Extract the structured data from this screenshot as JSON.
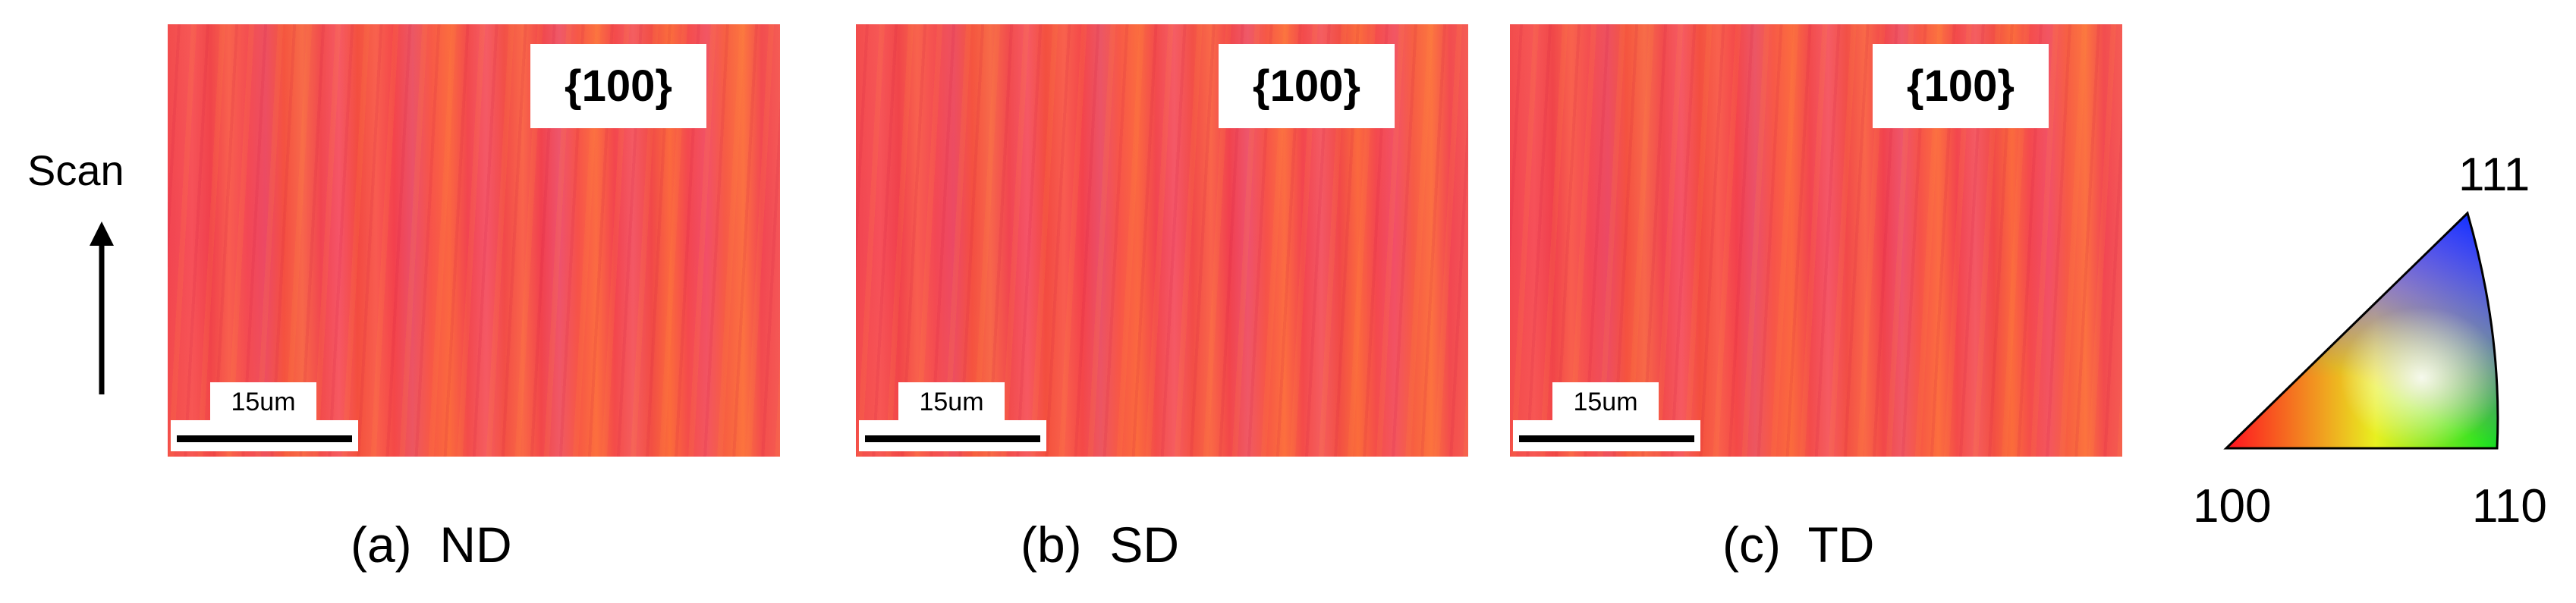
{
  "scan_label": "Scan",
  "panels": [
    {
      "badge": "{100}",
      "scale_bar": "15um",
      "caption": "(a)  ND"
    },
    {
      "badge": "{100}",
      "scale_bar": "15um",
      "caption": "(b)  SD"
    },
    {
      "badge": "{100}",
      "scale_bar": "15um",
      "caption": "(c)  TD"
    }
  ],
  "ipf": {
    "top": "111",
    "left": "100",
    "right": "110"
  }
}
